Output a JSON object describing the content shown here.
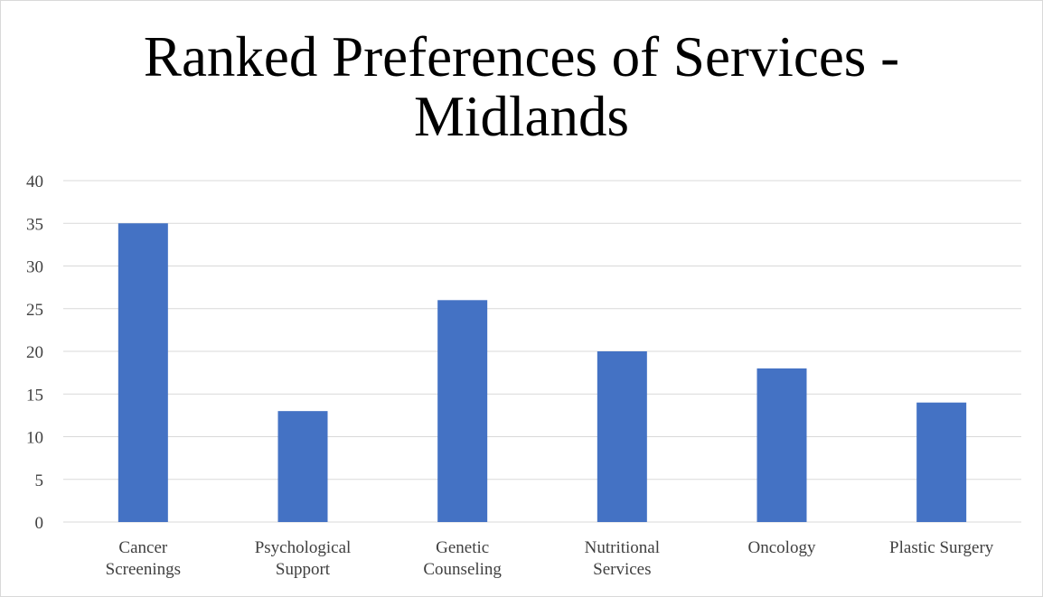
{
  "chart_data": {
    "type": "bar",
    "title_lines": [
      "Ranked Preferences of Services -",
      "Midlands"
    ],
    "categories": [
      [
        "Cancer",
        "Screenings"
      ],
      [
        "Psychological",
        "Support"
      ],
      [
        "Genetic",
        "Counseling"
      ],
      [
        "Nutritional",
        "Services"
      ],
      [
        "Oncology"
      ],
      [
        "Plastic Surgery"
      ]
    ],
    "values": [
      35,
      13,
      26,
      20,
      18,
      14
    ],
    "ylim": [
      0,
      40
    ],
    "yticks": [
      0,
      5,
      10,
      15,
      20,
      25,
      30,
      35,
      40
    ],
    "grid": true,
    "bar_color": "#4472c4",
    "grid_color": "#d9d9d9"
  }
}
